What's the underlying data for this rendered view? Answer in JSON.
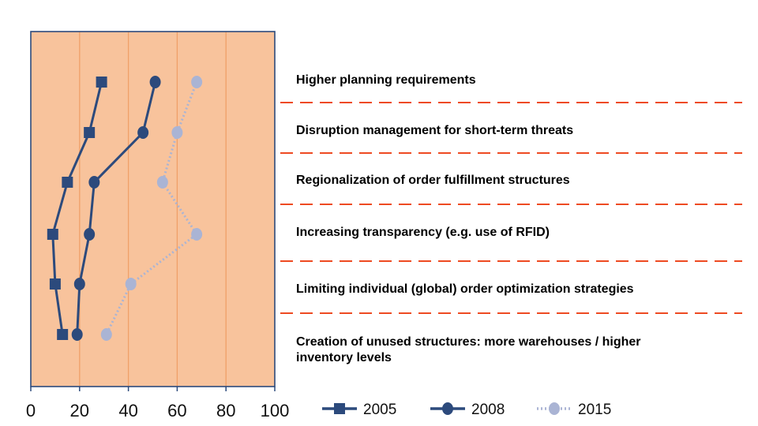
{
  "chart_data": {
    "type": "line",
    "orientation": "horizontal",
    "title": "",
    "xlabel": "",
    "ylabel": "",
    "xlim": [
      0,
      100
    ],
    "x_ticks": [
      0,
      20,
      40,
      60,
      80,
      100
    ],
    "grid": "vertical",
    "legend_position": "bottom-right",
    "categories": [
      "Higher planning requirements",
      "Disruption management for short-term threats",
      "Regionalization of order fulfillment structures",
      "Increasing transparency (e.g. use of RFID)",
      "Limiting individual (global) order optimization strategies",
      "Creation of unused structures: more warehouses / higher inventory levels"
    ],
    "series": [
      {
        "name": "2005",
        "marker": "square",
        "line_style": "solid",
        "color": "#2c4a7c",
        "values": [
          29,
          24,
          15,
          9,
          10,
          13
        ]
      },
      {
        "name": "2008",
        "marker": "circle",
        "line_style": "solid",
        "color": "#2c4a7c",
        "values": [
          51,
          46,
          26,
          24,
          20,
          19
        ]
      },
      {
        "name": "2015",
        "marker": "circle",
        "line_style": "dotted",
        "color": "#aab4d4",
        "values": [
          68,
          60,
          54,
          68,
          41,
          31
        ]
      }
    ],
    "colors": {
      "plot_background": "#f8c39c",
      "gridline": "#f0a068",
      "divider": "#ee4a22",
      "axis": "#2c4a7c"
    }
  }
}
